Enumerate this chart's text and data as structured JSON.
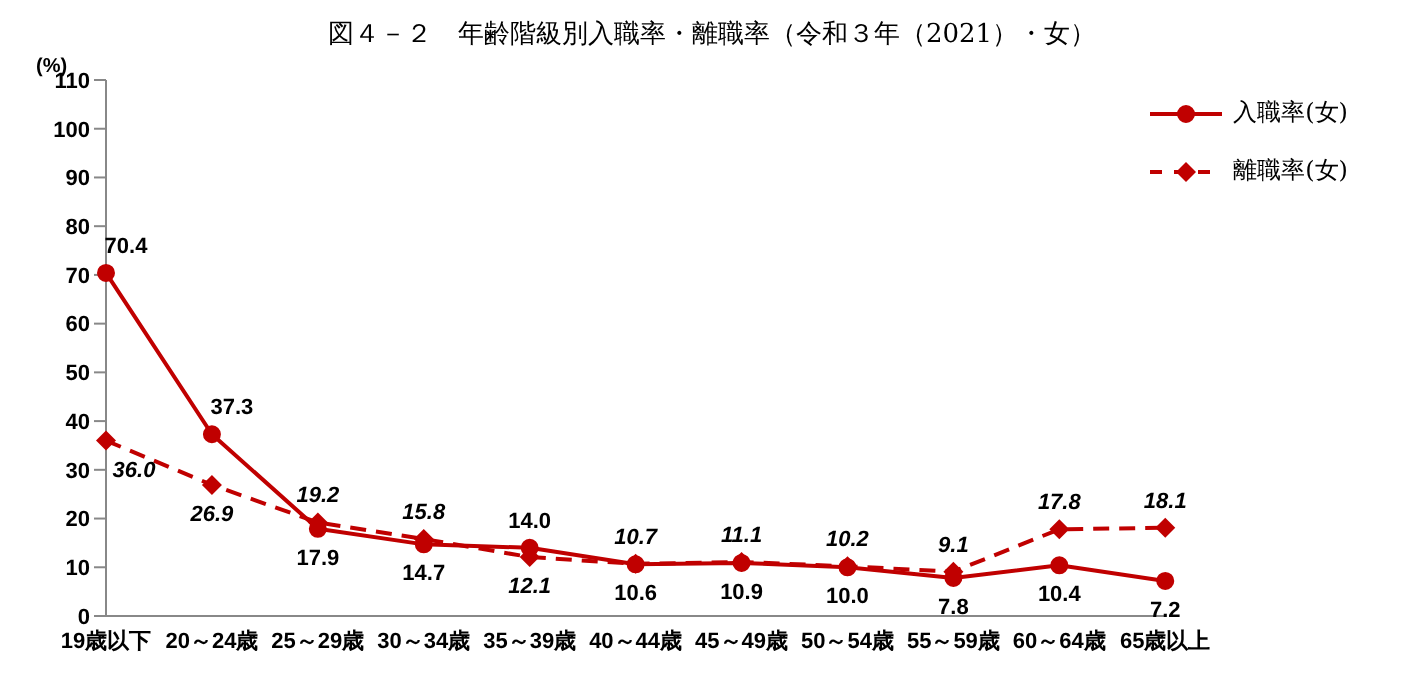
{
  "chart_data": {
    "type": "line",
    "title": "図４－２　年齢階級別入職率・離職率（令和３年（2021）・女）",
    "ylabel": "(%)",
    "categories": [
      "19歳以下",
      "20～24歳",
      "25～29歳",
      "30～34歳",
      "35～39歳",
      "40～44歳",
      "45～49歳",
      "50～54歳",
      "55～59歳",
      "60～64歳",
      "65歳以上"
    ],
    "series": [
      {
        "name": "入職率(女)",
        "color": "#c00000",
        "marker": "circle",
        "line_style": "solid",
        "values": [
          70.4,
          37.3,
          17.9,
          14.7,
          14.0,
          10.6,
          10.9,
          10.0,
          7.8,
          10.4,
          7.2
        ],
        "value_labels": [
          "70.4",
          "37.3",
          "17.9",
          "14.7",
          "14.0",
          "10.6",
          "10.9",
          "10.0",
          "7.8",
          "10.4",
          "7.2"
        ]
      },
      {
        "name": "離職率(女)",
        "color": "#c00000",
        "marker": "diamond",
        "line_style": "dashed",
        "values": [
          36.0,
          26.9,
          19.2,
          15.8,
          12.1,
          10.7,
          11.1,
          10.2,
          9.1,
          17.8,
          18.1
        ],
        "value_labels": [
          "36.0",
          "26.9",
          "19.2",
          "15.8",
          "12.1",
          "10.7",
          "11.1",
          "10.2",
          "9.1",
          "17.8",
          "18.1"
        ]
      }
    ],
    "ylim": [
      0,
      110
    ],
    "yticks": [
      0,
      10,
      20,
      30,
      40,
      50,
      60,
      70,
      80,
      90,
      100,
      110
    ],
    "grid": false,
    "legend": "top right"
  }
}
